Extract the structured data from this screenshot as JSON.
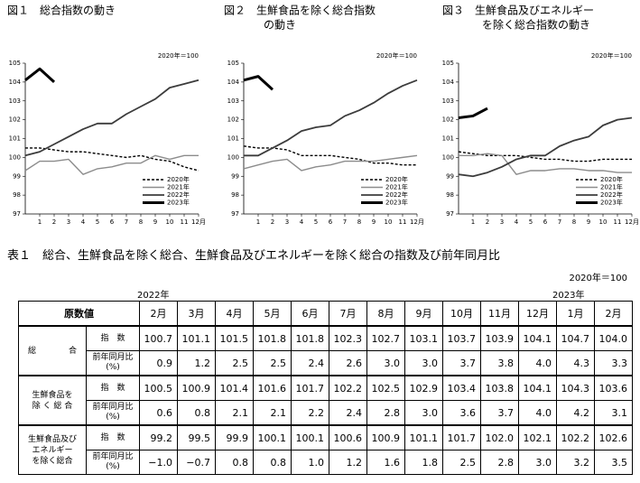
{
  "chart_data": [
    {
      "type": "line",
      "title": [
        "図１　総合指数の動き"
      ],
      "note": "2020年＝100",
      "x": [
        0,
        1,
        2,
        3,
        4,
        5,
        6,
        7,
        8,
        9,
        10,
        11,
        12
      ],
      "xlim": [
        0,
        12
      ],
      "xticks": [
        1,
        2,
        3,
        4,
        5,
        6,
        7,
        8,
        9,
        10,
        11,
        {
          "value": 12,
          "label": "12月"
        }
      ],
      "ylim": [
        97,
        105
      ],
      "yticks": [
        97,
        98,
        99,
        100,
        101,
        102,
        103,
        104,
        105
      ],
      "grid": false,
      "legend": "lower right",
      "series": [
        {
          "name": "2020年",
          "color": "#000000",
          "linestyle": "dashed",
          "values": [
            100.5,
            100.5,
            100.4,
            100.3,
            100.3,
            100.2,
            100.1,
            100.0,
            100.1,
            99.9,
            99.8,
            99.5,
            99.3
          ]
        },
        {
          "name": "2021年",
          "color": "#8c8c8c",
          "linestyle": "solid",
          "values": [
            99.3,
            99.8,
            99.8,
            99.9,
            99.1,
            99.4,
            99.5,
            99.7,
            99.7,
            100.1,
            99.9,
            100.1,
            100.1
          ]
        },
        {
          "name": "2022年",
          "color": "#3c3c3c",
          "linestyle": "solid",
          "values": [
            100.1,
            100.3,
            100.7,
            101.1,
            101.5,
            101.8,
            101.8,
            102.3,
            102.7,
            103.1,
            103.7,
            103.9,
            104.1
          ]
        },
        {
          "name": "2023年",
          "color": "#000000",
          "linestyle": "solid",
          "values": [
            104.1,
            104.7,
            104.0,
            null,
            null,
            null,
            null,
            null,
            null,
            null,
            null,
            null,
            null
          ]
        }
      ]
    },
    {
      "type": "line",
      "title": [
        "図２　生鮮食品を除く総合指数",
        "の動き"
      ],
      "note": "2020年＝100",
      "x": [
        0,
        1,
        2,
        3,
        4,
        5,
        6,
        7,
        8,
        9,
        10,
        11,
        12
      ],
      "xlim": [
        0,
        12
      ],
      "xticks": [
        1,
        2,
        3,
        4,
        5,
        6,
        7,
        8,
        9,
        10,
        11,
        {
          "value": 12,
          "label": "12月"
        }
      ],
      "ylim": [
        97,
        105
      ],
      "yticks": [
        97,
        98,
        99,
        100,
        101,
        102,
        103,
        104,
        105
      ],
      "grid": false,
      "legend": "lower right",
      "series": [
        {
          "name": "2020年",
          "color": "#000000",
          "linestyle": "dashed",
          "values": [
            100.6,
            100.5,
            100.5,
            100.4,
            100.1,
            100.1,
            100.1,
            100.0,
            99.9,
            99.7,
            99.7,
            99.6,
            99.6
          ]
        },
        {
          "name": "2021年",
          "color": "#8c8c8c",
          "linestyle": "solid",
          "values": [
            99.4,
            99.6,
            99.8,
            99.9,
            99.3,
            99.5,
            99.6,
            99.8,
            99.8,
            99.8,
            99.9,
            100.0,
            100.1
          ]
        },
        {
          "name": "2022年",
          "color": "#3c3c3c",
          "linestyle": "solid",
          "values": [
            100.1,
            100.1,
            100.5,
            100.9,
            101.4,
            101.6,
            101.7,
            102.2,
            102.5,
            102.9,
            103.4,
            103.8,
            104.1
          ]
        },
        {
          "name": "2023年",
          "color": "#000000",
          "linestyle": "solid",
          "values": [
            104.1,
            104.3,
            103.6,
            null,
            null,
            null,
            null,
            null,
            null,
            null,
            null,
            null,
            null
          ]
        }
      ]
    },
    {
      "type": "line",
      "title": [
        "図３　生鮮食品及びエネルギー",
        "を除く総合指数の動き"
      ],
      "note": "2020年＝100",
      "x": [
        0,
        1,
        2,
        3,
        4,
        5,
        6,
        7,
        8,
        9,
        10,
        11,
        12
      ],
      "xlim": [
        0,
        12
      ],
      "xticks": [
        1,
        2,
        3,
        4,
        5,
        6,
        7,
        8,
        9,
        10,
        11,
        {
          "value": 12,
          "label": "12月"
        }
      ],
      "ylim": [
        97,
        105
      ],
      "yticks": [
        97,
        98,
        99,
        100,
        101,
        102,
        103,
        104,
        105
      ],
      "grid": false,
      "legend": "lower right",
      "series": [
        {
          "name": "2020年",
          "color": "#000000",
          "linestyle": "dashed",
          "values": [
            100.3,
            100.2,
            100.1,
            100.1,
            100.1,
            100.0,
            99.9,
            99.9,
            99.8,
            99.8,
            99.9,
            99.9,
            99.9
          ]
        },
        {
          "name": "2021年",
          "color": "#8c8c8c",
          "linestyle": "solid",
          "values": [
            100.1,
            100.1,
            100.2,
            100.1,
            99.1,
            99.3,
            99.3,
            99.4,
            99.4,
            99.3,
            99.3,
            99.2,
            99.2
          ]
        },
        {
          "name": "2022年",
          "color": "#3c3c3c",
          "linestyle": "solid",
          "values": [
            99.1,
            99.0,
            99.2,
            99.5,
            99.9,
            100.1,
            100.1,
            100.6,
            100.9,
            101.1,
            101.7,
            102.0,
            102.1
          ]
        },
        {
          "name": "2023年",
          "color": "#000000",
          "linestyle": "solid",
          "values": [
            102.1,
            102.2,
            102.6,
            null,
            null,
            null,
            null,
            null,
            null,
            null,
            null,
            null,
            null
          ]
        }
      ]
    }
  ],
  "table": {
    "title": "表１　総合、生鮮食品を除く総合、生鮮食品及びエネルギーを除く総合の指数及び前年同月比",
    "unit": "2020年＝100",
    "year_labels": [
      "2022年",
      "2023年"
    ],
    "corner": "原数値",
    "months": [
      "2月",
      "3月",
      "4月",
      "5月",
      "6月",
      "7月",
      "8月",
      "9月",
      "10月",
      "11月",
      "12月",
      "1月",
      "2月"
    ],
    "groups": [
      {
        "name": [
          "総　　　　合"
        ],
        "rows": [
          {
            "label": [
              "指　数"
            ],
            "values": [
              "100.7",
              "101.1",
              "101.5",
              "101.8",
              "101.8",
              "102.3",
              "102.7",
              "103.1",
              "103.7",
              "103.9",
              "104.1",
              "104.7",
              "104.0"
            ]
          },
          {
            "label": [
              "前年同月比",
              "(%)"
            ],
            "values": [
              "0.9",
              "1.2",
              "2.5",
              "2.5",
              "2.4",
              "2.6",
              "3.0",
              "3.0",
              "3.7",
              "3.8",
              "4.0",
              "4.3",
              "3.3"
            ]
          }
        ]
      },
      {
        "name": [
          "生鮮食品を",
          "除 く 総 合"
        ],
        "rows": [
          {
            "label": [
              "指　数"
            ],
            "values": [
              "100.5",
              "100.9",
              "101.4",
              "101.6",
              "101.7",
              "102.2",
              "102.5",
              "102.9",
              "103.4",
              "103.8",
              "104.1",
              "104.3",
              "103.6"
            ]
          },
          {
            "label": [
              "前年同月比",
              "(%)"
            ],
            "values": [
              "0.6",
              "0.8",
              "2.1",
              "2.1",
              "2.2",
              "2.4",
              "2.8",
              "3.0",
              "3.6",
              "3.7",
              "4.0",
              "4.2",
              "3.1"
            ]
          }
        ]
      },
      {
        "name": [
          "生鮮食品及び",
          "エネルギー",
          "を除く総合"
        ],
        "rows": [
          {
            "label": [
              "指　数"
            ],
            "values": [
              "99.2",
              "99.5",
              "99.9",
              "100.1",
              "100.1",
              "100.6",
              "100.9",
              "101.1",
              "101.7",
              "102.0",
              "102.1",
              "102.2",
              "102.6"
            ]
          },
          {
            "label": [
              "前年同月比",
              "(%)"
            ],
            "values": [
              "−1.0",
              "−0.7",
              "0.8",
              "0.8",
              "1.0",
              "1.2",
              "1.6",
              "1.8",
              "2.5",
              "2.8",
              "3.0",
              "3.2",
              "3.5"
            ]
          }
        ]
      }
    ]
  }
}
